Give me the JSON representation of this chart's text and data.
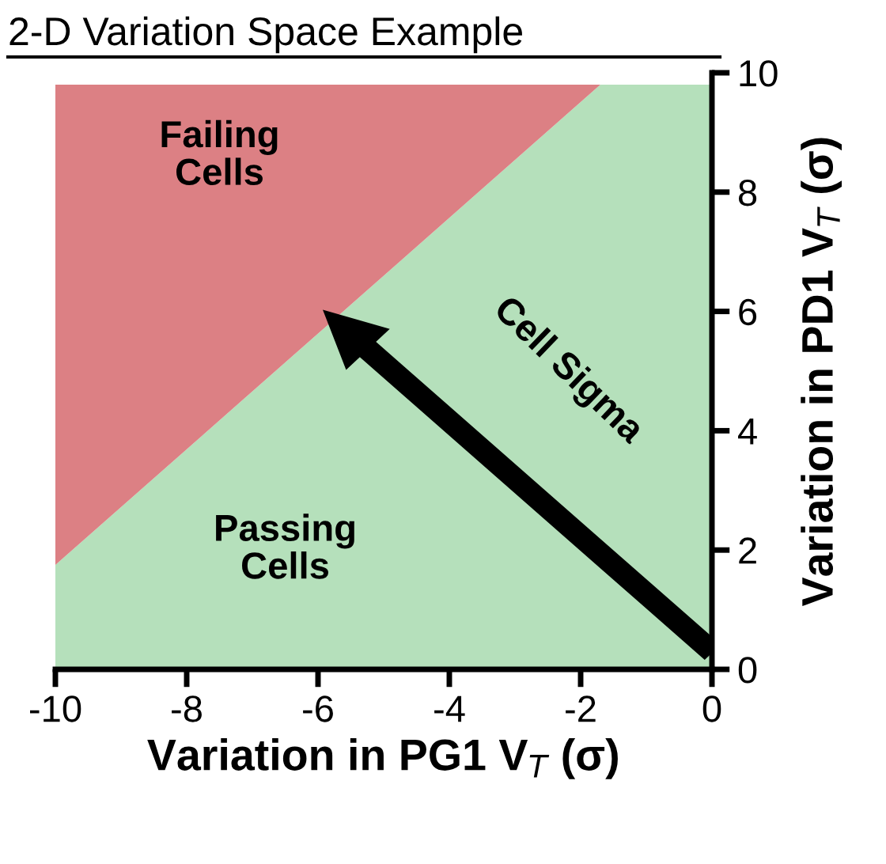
{
  "chart_data": {
    "type": "area",
    "stacked": true,
    "title": "2-D Variation Space Example",
    "xlabel": "Variation in PG1 V$_{T}$ (σ)",
    "ylabel": "Variation in PD1 V$_{T}$ (σ)",
    "x": [
      -10,
      -1.7,
      0
    ],
    "series": [
      {
        "color": "#b5e0bb",
        "values": [
          1.75,
          9.8,
          9.8
        ]
      },
      {
        "color": "#dc8084",
        "values": [
          8.05,
          0,
          0
        ]
      }
    ],
    "xlim": [
      -10,
      0
    ],
    "xticks": [
      -10,
      -8,
      -6,
      -4,
      -2,
      0
    ],
    "ylim": [
      0,
      10
    ],
    "yticks": [
      0,
      2,
      4,
      6,
      8,
      10
    ],
    "grid": false,
    "annotations": [
      "Failing\nCells",
      "Passing\nCells",
      "Cell Sigma"
    ]
  }
}
